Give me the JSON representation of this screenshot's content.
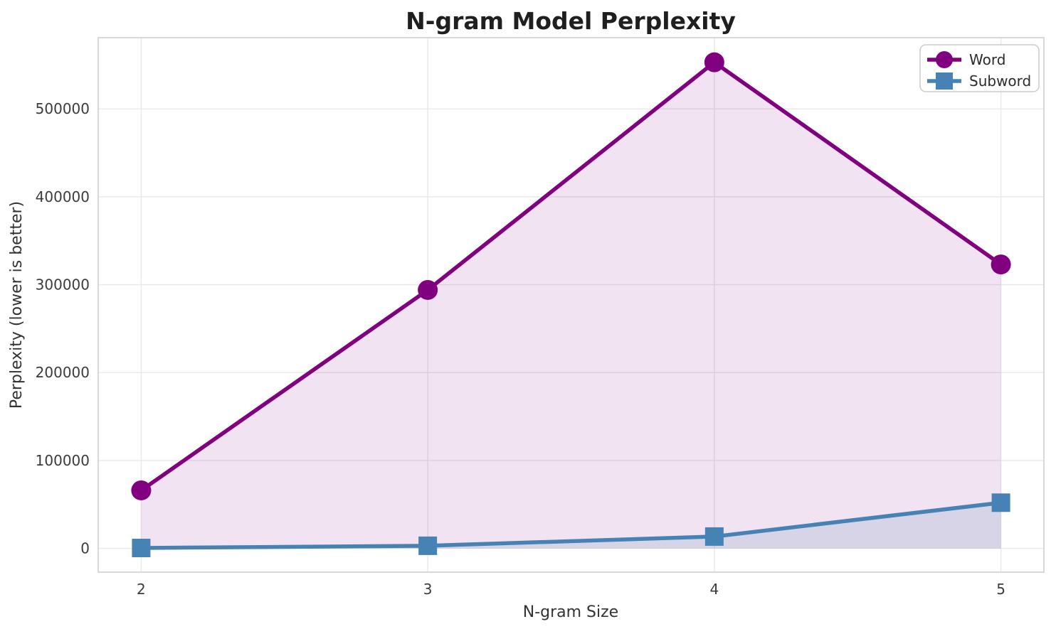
{
  "chart_data": {
    "type": "line",
    "title": "N-gram Model Perplexity",
    "xlabel": "N-gram Size",
    "ylabel": "Perplexity (lower is better)",
    "x": [
      2,
      3,
      4,
      5
    ],
    "xticks": [
      "2",
      "3",
      "4",
      "5"
    ],
    "yticks": [
      0,
      100000,
      200000,
      300000,
      400000,
      500000
    ],
    "ytick_labels": [
      "0",
      "100000",
      "200000",
      "300000",
      "400000",
      "500000"
    ],
    "xlim": [
      1.85,
      5.15
    ],
    "ylim": [
      -27000,
      581000
    ],
    "grid": true,
    "legend_position": "upper right",
    "fill_to_zero": true,
    "series": [
      {
        "name": "Word",
        "values": [
          66000,
          294000,
          553000,
          323000
        ],
        "color": "#800080",
        "marker": "circle",
        "fill_alpha": 0.11,
        "linewidth": 5.5
      },
      {
        "name": "Subword",
        "values": [
          500,
          3000,
          13500,
          52000
        ],
        "color": "#4682b4",
        "marker": "square",
        "fill_alpha": 0.15,
        "linewidth": 5.5
      }
    ]
  },
  "colors": {
    "background": "#ffffff",
    "grid": "#e8e8e8",
    "spine": "#d4d4d4",
    "tick_text": "#3b3b3b",
    "title_text": "#1f1f1f",
    "legend_border": "#cccccc",
    "legend_background": "#ffffff"
  }
}
